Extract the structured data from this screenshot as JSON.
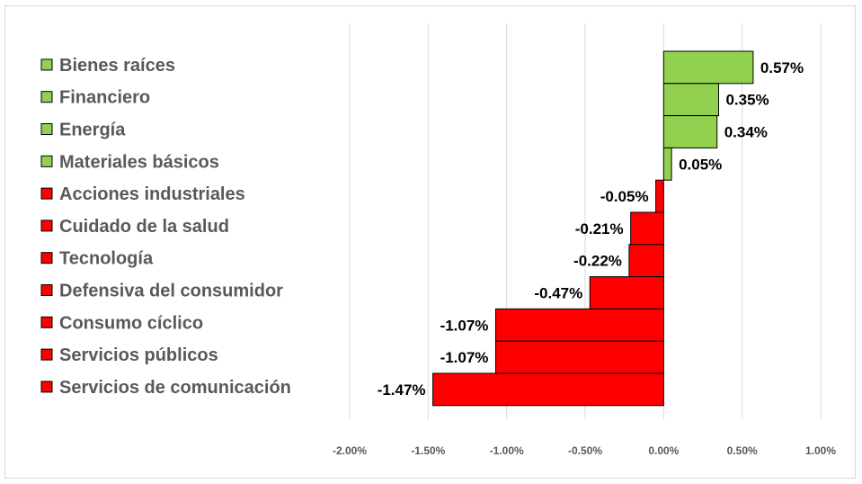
{
  "chart_data": {
    "type": "bar",
    "orientation": "horizontal",
    "title": "",
    "xlabel": "",
    "ylabel": "",
    "xlim": [
      -0.02,
      0.01
    ],
    "grid": true,
    "legend": "none",
    "categories": [
      "Bienes raíces",
      "Financiero",
      "Energía",
      "Materiales básicos",
      "Acciones industriales",
      "Cuidado de la salud",
      "Tecnología",
      "Defensiva del consumidor",
      "Consumo cíclico",
      "Servicios públicos",
      "Servicios de comunicación"
    ],
    "values": [
      0.0057,
      0.0035,
      0.0034,
      0.0005,
      -0.0005,
      -0.0021,
      -0.0022,
      -0.0047,
      -0.0107,
      -0.0107,
      -0.0147
    ],
    "value_labels": [
      "0.57%",
      "0.35%",
      "0.34%",
      "0.05%",
      "-0.05%",
      "-0.21%",
      "-0.22%",
      "-0.47%",
      "-1.07%",
      "-1.07%",
      "-1.47%"
    ],
    "x_ticks": [
      -0.02,
      -0.015,
      -0.01,
      -0.005,
      0.0,
      0.005,
      0.01
    ],
    "x_tick_labels": [
      "-2.00%",
      "-1.50%",
      "-1.00%",
      "-0.50%",
      "0.00%",
      "0.50%",
      "1.00%"
    ],
    "colors": {
      "positive": "#92d050",
      "negative": "#ff0000",
      "bar_border": "#000000",
      "grid": "#d9d9d9"
    }
  }
}
